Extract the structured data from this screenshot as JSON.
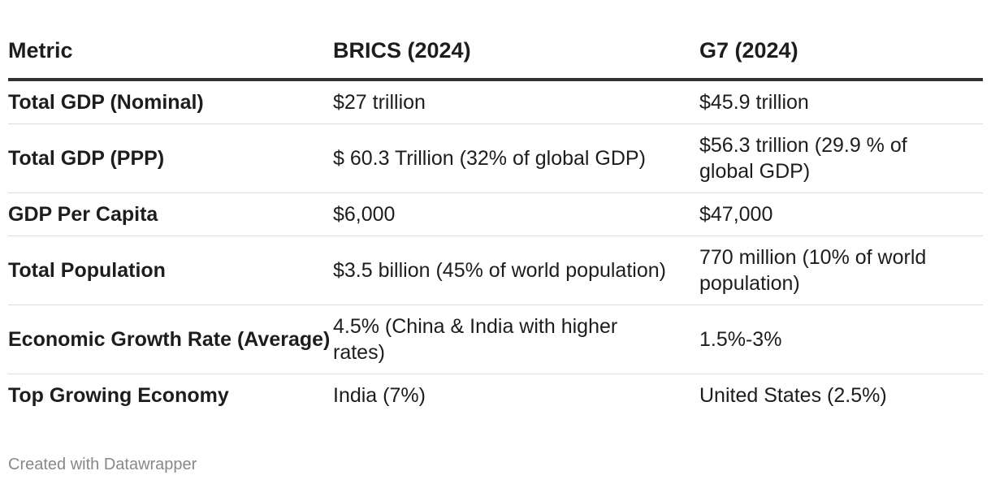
{
  "chart_data": {
    "type": "table",
    "columns": [
      "Metric",
      "BRICS (2024)",
      "G7 (2024)"
    ],
    "rows": [
      [
        "Total GDP (Nominal)",
        "$27 trillion",
        "$45.9 trillion"
      ],
      [
        "Total GDP (PPP)",
        "$ 60.3 Trillion (32% of global GDP)",
        "$56.3 trillion (29.9 % of global GDP)"
      ],
      [
        "GDP Per Capita",
        "$6,000",
        "$47,000"
      ],
      [
        "Total Population",
        "$3.5 billion (45% of world population)",
        "770 million (10% of world population)"
      ],
      [
        "Economic Growth Rate (Average)",
        "4.5% (China & India with higher rates)",
        "1.5%-3%"
      ],
      [
        "Top Growing Economy",
        "India (7%)",
        "United States (2.5%)"
      ]
    ],
    "credit": "Created with Datawrapper"
  },
  "colors": {
    "text": "#1d1d1d",
    "header_rule": "#333333",
    "row_divider": "#dddddd",
    "credit_text": "#888888"
  }
}
